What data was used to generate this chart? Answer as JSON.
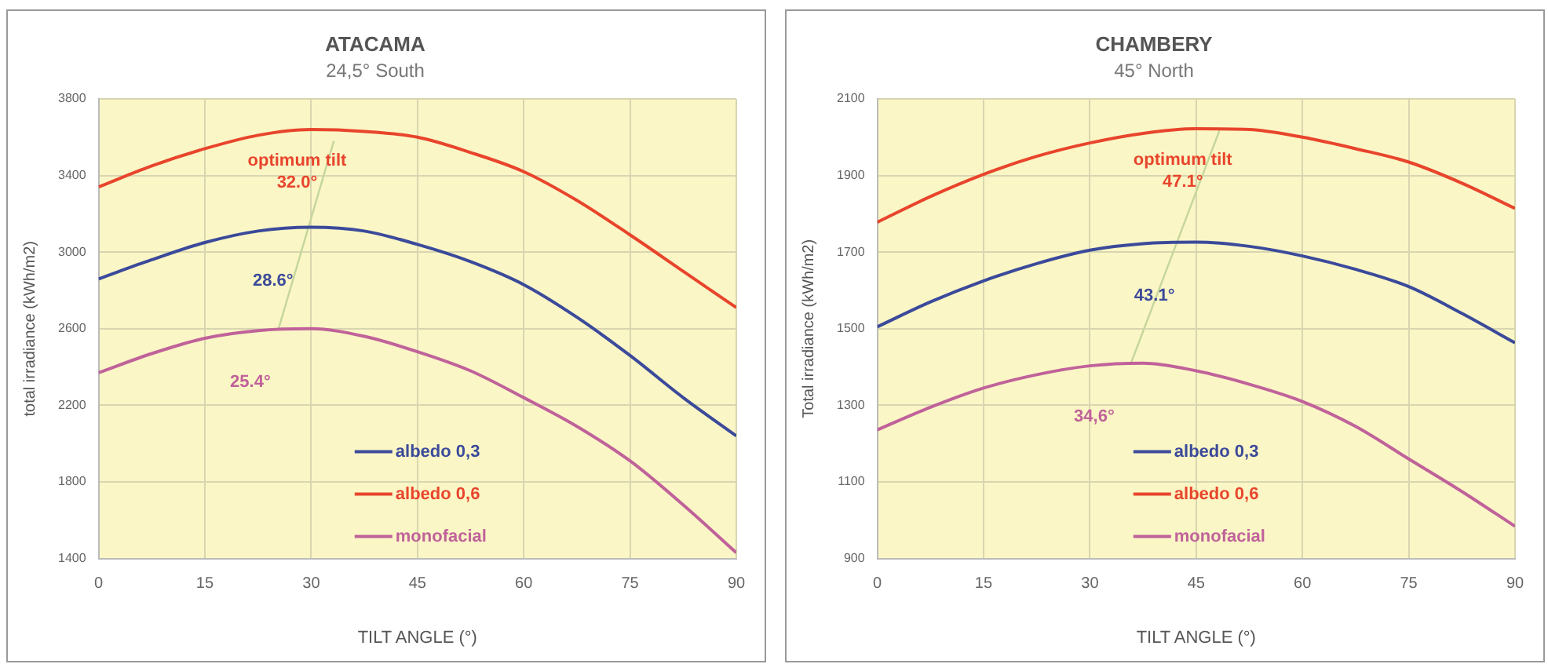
{
  "chart_data": [
    {
      "type": "line",
      "title": "ATACAMA",
      "subtitle": "24,5° South",
      "xlabel": "TILT ANGLE (°)",
      "ylabel": "total irradiance (kWh/m2)",
      "x": [
        0,
        7.5,
        15,
        22.5,
        30,
        37.5,
        45,
        52.5,
        60,
        67.5,
        75,
        82.5,
        90
      ],
      "series": [
        {
          "name": "albedo 0,3",
          "color": "#3b4a9a",
          "values": [
            2860,
            2960,
            3050,
            3110,
            3130,
            3110,
            3040,
            2950,
            2830,
            2660,
            2460,
            2240,
            2040
          ]
        },
        {
          "name": "albedo 0,6",
          "color": "#e8452c",
          "values": [
            3340,
            3450,
            3540,
            3610,
            3640,
            3630,
            3600,
            3520,
            3420,
            3270,
            3090,
            2900,
            2710
          ]
        },
        {
          "name": "monofacial",
          "color": "#c0629a",
          "values": [
            2370,
            2470,
            2550,
            2590,
            2600,
            2560,
            2480,
            2380,
            2240,
            2090,
            1910,
            1680,
            1430
          ]
        },
        {
          "color": "#c4d69a",
          "x": [
            25.4,
            33.2
          ],
          "values": [
            2600,
            3580
          ]
        }
      ],
      "annotations": [
        "optimum tilt",
        {
          "text": "32.0°",
          "x": 32.0,
          "y": 3640
        },
        {
          "text": "28.6°",
          "x": 28.6,
          "y": 3130
        },
        {
          "text": "25.4°",
          "x": 25.4,
          "y": 2600
        }
      ],
      "xlim": [
        0,
        90
      ],
      "xticks": [
        0,
        15,
        30,
        45,
        60,
        75,
        90
      ],
      "ylim": [
        1400,
        3800
      ],
      "yticks": [
        1400,
        1800,
        2200,
        2600,
        3000,
        3400,
        3800
      ],
      "grid": true,
      "legend": "bottom",
      "marker": "none",
      "line_style": "solid"
    },
    {
      "type": "line",
      "title": "CHAMBERY",
      "subtitle": "45° North",
      "xlabel": "TILT ANGLE (°)",
      "ylabel": "Total irradiance (kWh/m2)",
      "x": [
        0,
        7.5,
        15,
        22.5,
        30,
        37.5,
        45,
        52.5,
        60,
        67.5,
        75,
        82.5,
        90
      ],
      "series": [
        {
          "name": "albedo 0,3",
          "color": "#3b4a9a",
          "values": [
            1505,
            1570,
            1625,
            1670,
            1705,
            1722,
            1726,
            1715,
            1690,
            1655,
            1610,
            1540,
            1463
          ]
        },
        {
          "name": "albedo 0,6",
          "color": "#e8452c",
          "values": [
            1778,
            1845,
            1903,
            1950,
            1985,
            2010,
            2022,
            2020,
            2000,
            1970,
            1935,
            1880,
            1814
          ]
        },
        {
          "name": "monofacial",
          "color": "#c0629a",
          "values": [
            1236,
            1295,
            1345,
            1380,
            1403,
            1410,
            1390,
            1355,
            1310,
            1245,
            1160,
            1075,
            984
          ]
        },
        {
          "color": "#c4d69a",
          "x": [
            35.8,
            48.3
          ],
          "values": [
            1410,
            2018
          ]
        }
      ],
      "annotations": [
        "optimum tilt",
        {
          "text": "47.1°",
          "x": 47.1,
          "y": 2022
        },
        {
          "text": "43.1°",
          "x": 43.1,
          "y": 1726
        },
        {
          "text": "34,6°",
          "x": 34.6,
          "y": 1410
        }
      ],
      "xlim": [
        0,
        90
      ],
      "xticks": [
        0,
        15,
        30,
        45,
        60,
        75,
        90
      ],
      "ylim": [
        900,
        2100
      ],
      "yticks": [
        900,
        1100,
        1300,
        1500,
        1700,
        1900,
        2100
      ],
      "grid": true,
      "legend": "bottom",
      "marker": "none",
      "line_style": "solid"
    }
  ]
}
